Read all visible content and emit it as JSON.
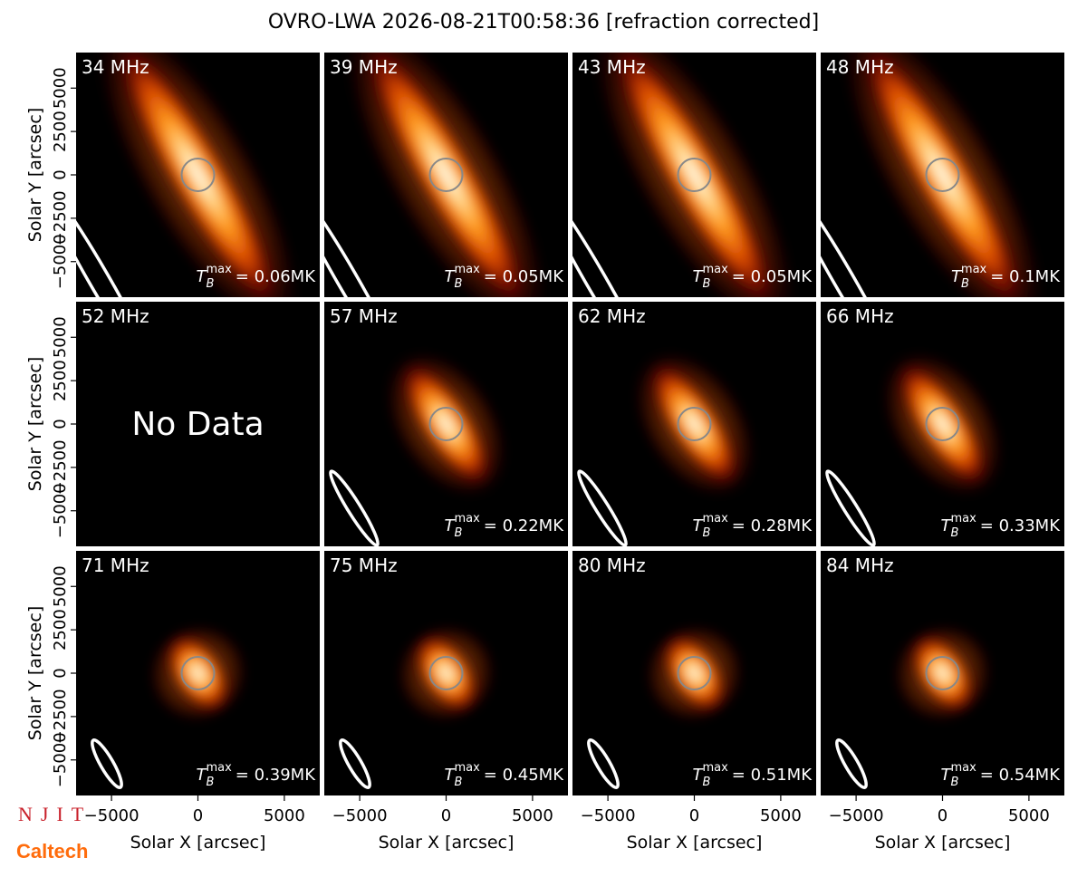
{
  "chart_data": {
    "type": "image_grid",
    "title": "OVRO-LWA 2026-08-21T00:58:36 [refraction corrected]",
    "xlabel": "Solar X [arcsec]",
    "ylabel": "Solar Y [arcsec]",
    "xlim": [
      -7050,
      7050
    ],
    "ylim": [
      -7050,
      7050
    ],
    "xticks": [
      {
        "value": -5000,
        "label": "−5000"
      },
      0,
      5000
    ],
    "yticks": [
      {
        "value": -5000,
        "label": "−5000"
      },
      {
        "value": -2500,
        "label": "−2500"
      },
      0,
      2500,
      5000
    ],
    "tb_symbol": "T",
    "tb_sub": "B",
    "tb_sup": "max",
    "panels": [
      {
        "title": "34 MHz",
        "annotation": "= 0.06MK"
      },
      {
        "title": "39 MHz",
        "annotation": "= 0.05MK"
      },
      {
        "title": "43 MHz",
        "annotation": "= 0.05MK"
      },
      {
        "title": "48 MHz",
        "annotation": "= 0.1MK"
      },
      {
        "title": "52 MHz",
        "note": "No Data"
      },
      {
        "title": "57 MHz",
        "annotation": "= 0.22MK"
      },
      {
        "title": "62 MHz",
        "annotation": "= 0.28MK"
      },
      {
        "title": "66 MHz",
        "annotation": "= 0.33MK"
      },
      {
        "title": "71 MHz",
        "annotation": "= 0.39MK"
      },
      {
        "title": "75 MHz",
        "annotation": "= 0.45MK"
      },
      {
        "title": "80 MHz",
        "annotation": "= 0.51MK"
      },
      {
        "title": "84 MHz",
        "annotation": "= 0.54MK"
      }
    ]
  },
  "logos": [
    "NJIT",
    "Caltech"
  ]
}
